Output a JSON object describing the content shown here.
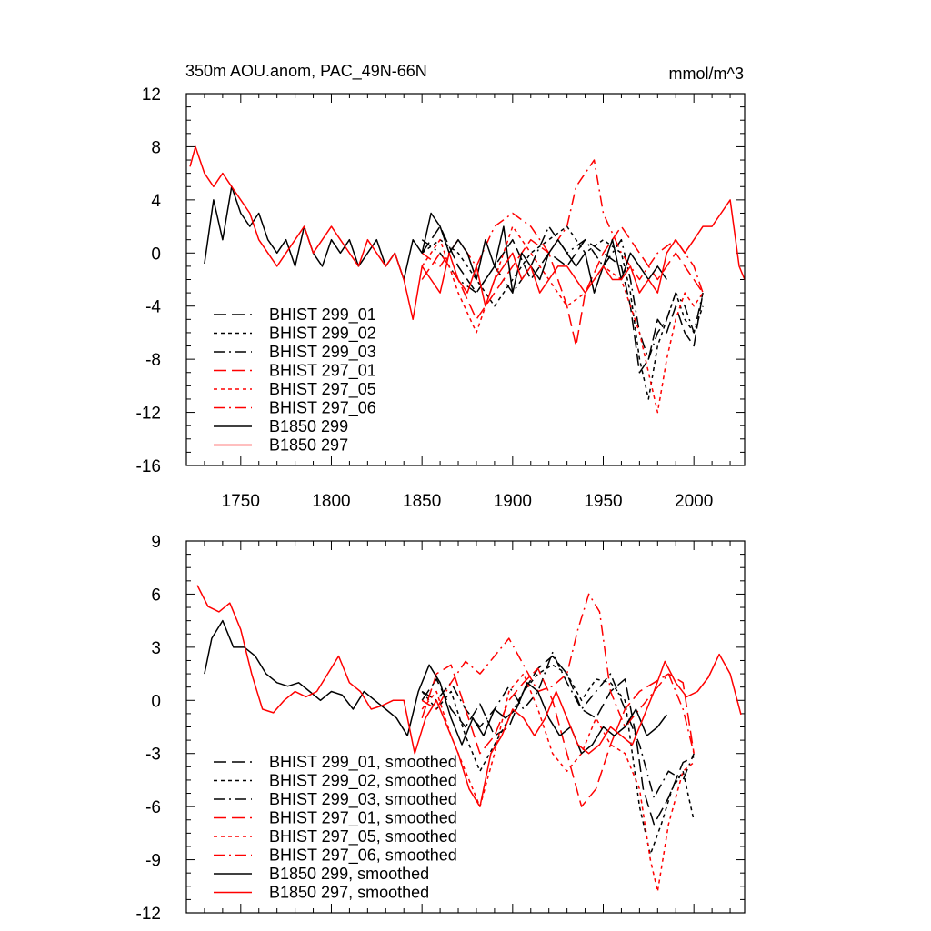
{
  "chart_data": [
    {
      "type": "line",
      "title": "350m AOU.anom, PAC_49N-66N",
      "units": "mmol/m^3",
      "xlim": [
        1720,
        2028
      ],
      "ylim": [
        -16,
        12
      ],
      "yticks": [
        12,
        8,
        4,
        0,
        -4,
        -8,
        -12,
        -16
      ],
      "xticks": [
        1750,
        1800,
        1850,
        1900,
        1950,
        2000
      ],
      "legend": "bottom-left",
      "series": [
        {
          "name": "BHIST 299_01",
          "color": "#000000",
          "dash": "long-dash",
          "x": [
            1850,
            1860,
            1870,
            1880,
            1890,
            1900,
            1910,
            1920,
            1930,
            1940,
            1950,
            1960,
            1965,
            1970,
            1975,
            1980,
            1985,
            1990,
            1995,
            2000,
            2005
          ],
          "y": [
            0,
            2,
            -1,
            -3,
            -1,
            1,
            -2,
            0,
            -1,
            1,
            0,
            -1,
            -4,
            -9,
            -8,
            -5,
            -6,
            -4,
            -6,
            -7,
            -3
          ]
        },
        {
          "name": "BHIST 299_02",
          "color": "#000000",
          "dash": "short-dash",
          "x": [
            1850,
            1860,
            1870,
            1880,
            1890,
            1900,
            1910,
            1920,
            1930,
            1940,
            1950,
            1960,
            1965,
            1970,
            1975,
            1980,
            1985,
            1990,
            1995,
            2000,
            2005
          ],
          "y": [
            0,
            1,
            0,
            -2,
            -4,
            -2,
            0,
            1,
            2,
            0,
            1,
            0,
            -3,
            -8,
            -11,
            -7,
            -5,
            -3,
            -5,
            -6,
            -4
          ]
        },
        {
          "name": "BHIST 299_03",
          "color": "#000000",
          "dash": "dash-dot",
          "x": [
            1850,
            1860,
            1870,
            1880,
            1890,
            1900,
            1910,
            1920,
            1930,
            1940,
            1950,
            1960,
            1965,
            1970,
            1975,
            1980,
            1985,
            1990,
            1995,
            2000,
            2005
          ],
          "y": [
            1,
            0,
            -2,
            -3,
            -1,
            -3,
            -1,
            2,
            0,
            1,
            -1,
            1,
            -2,
            -6,
            -8,
            -6,
            -5,
            -3,
            -4,
            -6,
            -3
          ]
        },
        {
          "name": "BHIST 297_01",
          "color": "#ff0000",
          "dash": "long-dash",
          "x": [
            1850,
            1860,
            1870,
            1880,
            1890,
            1900,
            1910,
            1920,
            1930,
            1935,
            1940,
            1950,
            1960,
            1970,
            1980,
            1990,
            2000,
            2005
          ],
          "y": [
            -2,
            0,
            -2,
            -5,
            -3,
            -1,
            1,
            0,
            -4,
            -7,
            -3,
            0,
            2,
            0,
            -2,
            0,
            -2,
            -3
          ]
        },
        {
          "name": "BHIST 297_05",
          "color": "#ff0000",
          "dash": "short-dash",
          "x": [
            1850,
            1860,
            1870,
            1880,
            1890,
            1900,
            1910,
            1920,
            1930,
            1940,
            1950,
            1960,
            1965,
            1970,
            1975,
            1980,
            1985,
            1990,
            1995,
            2000,
            2005
          ],
          "y": [
            -1,
            1,
            -3,
            -6,
            -2,
            2,
            0,
            -2,
            -4,
            -3,
            -1,
            -2,
            -4,
            -6,
            -9,
            -12,
            -8,
            -5,
            -3,
            -4,
            -3
          ]
        },
        {
          "name": "BHIST 297_06",
          "color": "#ff0000",
          "dash": "dash-dot",
          "x": [
            1850,
            1860,
            1870,
            1880,
            1890,
            1900,
            1910,
            1920,
            1930,
            1935,
            1940,
            1945,
            1950,
            1960,
            1970,
            1980,
            1990,
            2000,
            2005
          ],
          "y": [
            0,
            -1,
            1,
            -1,
            2,
            3,
            2,
            0,
            2,
            5,
            6,
            7,
            3,
            0,
            -2,
            0,
            1,
            -1,
            -3
          ]
        },
        {
          "name": "B1850 299",
          "color": "#000000",
          "dash": "solid",
          "x": [
            1730,
            1735,
            1740,
            1745,
            1750,
            1755,
            1760,
            1765,
            1770,
            1775,
            1780,
            1785,
            1790,
            1795,
            1800,
            1805,
            1810,
            1815,
            1820,
            1825,
            1830,
            1835,
            1840,
            1845,
            1850,
            1855,
            1860,
            1865,
            1870,
            1875,
            1880,
            1885,
            1890,
            1895,
            1900,
            1905,
            1910,
            1915,
            1920,
            1925,
            1930,
            1935,
            1940,
            1945,
            1950,
            1955,
            1960,
            1965,
            1970,
            1975,
            1980,
            1985
          ],
          "y": [
            -0.8,
            4,
            1,
            5,
            3,
            2,
            3,
            1,
            0,
            1,
            -1,
            2,
            0,
            -1,
            1,
            0,
            1,
            -1,
            0,
            1,
            -1,
            0,
            -2,
            1,
            0,
            3,
            2,
            0,
            1,
            0,
            -2,
            1,
            -1,
            2,
            -3,
            0,
            -1,
            -2,
            0,
            1,
            0,
            -1,
            0,
            -3,
            -1,
            1,
            -2,
            0,
            -1,
            -2,
            -1,
            -2
          ]
        },
        {
          "name": "B1850 297",
          "color": "#ff0000",
          "dash": "solid",
          "x": [
            1722,
            1725,
            1730,
            1735,
            1740,
            1745,
            1750,
            1755,
            1760,
            1765,
            1770,
            1775,
            1780,
            1785,
            1790,
            1795,
            1800,
            1805,
            1810,
            1815,
            1820,
            1825,
            1830,
            1835,
            1840,
            1845,
            1850,
            1855,
            1860,
            1865,
            1870,
            1875,
            1880,
            1885,
            1890,
            1895,
            1900,
            1905,
            1910,
            1915,
            1920,
            1925,
            1930,
            1935,
            1940,
            1945,
            1950,
            1955,
            1960,
            1965,
            1970,
            1975,
            1980,
            1985,
            1990,
            1995,
            2000,
            2005,
            2010,
            2015,
            2020,
            2025,
            2028
          ],
          "y": [
            6.5,
            8,
            6,
            5,
            6,
            5,
            4,
            3,
            1,
            0,
            -1,
            0,
            1,
            2,
            0,
            1,
            2,
            1,
            0,
            -1,
            1,
            0,
            -1,
            0,
            -2,
            -5,
            -1,
            -2,
            -3,
            0,
            -2,
            -3,
            -1,
            -4,
            -2,
            -1,
            0,
            -2,
            -1,
            -3,
            -2,
            -1,
            -1,
            -2,
            -3,
            -2,
            -1,
            -2,
            -2,
            -1,
            -3,
            -2,
            -3,
            0,
            1,
            0,
            1,
            2,
            2,
            3,
            4,
            -1,
            -2
          ]
        }
      ]
    },
    {
      "type": "line",
      "title": "",
      "xlim": [
        1720,
        2028
      ],
      "ylim": [
        -12,
        9
      ],
      "yticks": [
        9,
        6,
        3,
        0,
        -3,
        -6,
        -9,
        -12
      ],
      "legend": "bottom-left",
      "series": [
        {
          "name": "BHIST 299_01, smoothed",
          "color": "#000000",
          "dash": "long-dash",
          "x": [
            1850,
            1858,
            1866,
            1874,
            1882,
            1890,
            1898,
            1906,
            1914,
            1922,
            1930,
            1938,
            1946,
            1954,
            1962,
            1968,
            1972,
            1978,
            1986,
            1994,
            2000
          ],
          "y": [
            0,
            1.2,
            -0.5,
            -1.5,
            -0.2,
            -2,
            -1.5,
            0.5,
            1.8,
            2.5,
            1.5,
            -0.5,
            -1,
            0.5,
            1.2,
            -2,
            -5,
            -7,
            -5.5,
            -3.5,
            -3.2
          ]
        },
        {
          "name": "BHIST 299_02, smoothed",
          "color": "#000000",
          "dash": "short-dash",
          "x": [
            1850,
            1858,
            1866,
            1874,
            1882,
            1890,
            1898,
            1906,
            1914,
            1922,
            1930,
            1938,
            1946,
            1954,
            1962,
            1966,
            1970,
            1976,
            1982,
            1988,
            1994,
            2000
          ],
          "y": [
            0.5,
            -0.5,
            0.5,
            -2,
            -4,
            -2.5,
            -1,
            0.5,
            1.5,
            2,
            1.5,
            0,
            1.2,
            1,
            0,
            -3,
            -6,
            -8.7,
            -7,
            -5,
            -4,
            -6.8
          ]
        },
        {
          "name": "BHIST 299_03, smoothed",
          "color": "#000000",
          "dash": "dash-dot",
          "x": [
            1850,
            1858,
            1866,
            1874,
            1882,
            1890,
            1898,
            1906,
            1914,
            1922,
            1930,
            1938,
            1946,
            1954,
            1962,
            1970,
            1978,
            1986,
            1994,
            2000
          ],
          "y": [
            0.5,
            0,
            1,
            -0.5,
            -1.5,
            -0.5,
            0.8,
            -0.5,
            0.5,
            2.7,
            1,
            -0.5,
            0.5,
            1.5,
            -0.5,
            -2.5,
            -5.5,
            -4,
            -4.5,
            -3
          ]
        },
        {
          "name": "BHIST 297_01, smoothed",
          "color": "#ff0000",
          "dash": "long-dash",
          "x": [
            1850,
            1858,
            1866,
            1874,
            1882,
            1890,
            1898,
            1906,
            1914,
            1922,
            1930,
            1938,
            1946,
            1954,
            1962,
            1970,
            1978,
            1986,
            1994,
            2000
          ],
          "y": [
            -1,
            1.5,
            2,
            -0.5,
            -3,
            -2,
            0,
            1,
            1.8,
            0,
            -3,
            -6,
            -5,
            -2.5,
            -0.5,
            0.5,
            1,
            1.5,
            1,
            -3
          ]
        },
        {
          "name": "BHIST 297_05, smoothed",
          "color": "#ff0000",
          "dash": "short-dash",
          "x": [
            1850,
            1858,
            1866,
            1874,
            1882,
            1890,
            1898,
            1906,
            1914,
            1922,
            1930,
            1938,
            1946,
            1954,
            1962,
            1970,
            1976,
            1980,
            1986,
            1994,
            2000
          ],
          "y": [
            -0.5,
            0.5,
            -2,
            -4,
            -6,
            -3,
            0.5,
            1.5,
            -0.5,
            -3,
            -4,
            -3,
            -1,
            -2.5,
            -3,
            -5,
            -9,
            -10.8,
            -7,
            -4,
            -3.5
          ]
        },
        {
          "name": "BHIST 297_06, smoothed",
          "color": "#ff0000",
          "dash": "dash-dot",
          "x": [
            1850,
            1858,
            1866,
            1874,
            1882,
            1890,
            1898,
            1906,
            1914,
            1922,
            1930,
            1936,
            1942,
            1948,
            1954,
            1962,
            1970,
            1978,
            1986,
            1994,
            2000
          ],
          "y": [
            0,
            -0.5,
            1,
            2.2,
            1.5,
            2.5,
            3.5,
            2,
            0.5,
            0.8,
            1.5,
            4,
            6,
            5,
            0.5,
            -1.5,
            -0.5,
            0.5,
            1.5,
            -0.5,
            -3
          ]
        },
        {
          "name": "B1850 299, smoothed",
          "color": "#000000",
          "dash": "solid",
          "x": [
            1730,
            1734,
            1740,
            1746,
            1752,
            1758,
            1764,
            1770,
            1776,
            1782,
            1788,
            1794,
            1800,
            1806,
            1812,
            1818,
            1824,
            1830,
            1836,
            1842,
            1848,
            1854,
            1860,
            1866,
            1872,
            1878,
            1884,
            1890,
            1896,
            1902,
            1908,
            1914,
            1920,
            1926,
            1932,
            1938,
            1944,
            1950,
            1956,
            1962,
            1968,
            1974,
            1980,
            1985
          ],
          "y": [
            1.5,
            3.5,
            4.5,
            3,
            3,
            2.5,
            1.5,
            1,
            0.8,
            1,
            0.5,
            0,
            0.5,
            0.3,
            -0.5,
            0.5,
            0,
            -0.5,
            -1,
            -2,
            0.5,
            2,
            1,
            -1,
            -2.5,
            -1,
            -2,
            -0.5,
            -1,
            -0.5,
            1,
            0.5,
            -1,
            -2,
            -1.5,
            -3,
            -2.5,
            -1.5,
            -2,
            -1.5,
            -0.5,
            -2,
            -1.5,
            -0.8
          ]
        },
        {
          "name": "B1850 297, smoothed",
          "color": "#ff0000",
          "dash": "solid",
          "x": [
            1726,
            1732,
            1738,
            1744,
            1750,
            1756,
            1762,
            1768,
            1774,
            1780,
            1786,
            1792,
            1798,
            1804,
            1810,
            1816,
            1822,
            1828,
            1834,
            1840,
            1846,
            1852,
            1858,
            1864,
            1870,
            1876,
            1882,
            1888,
            1894,
            1900,
            1906,
            1912,
            1918,
            1924,
            1930,
            1936,
            1942,
            1948,
            1954,
            1960,
            1966,
            1972,
            1978,
            1984,
            1990,
            1996,
            2002,
            2008,
            2014,
            2020,
            2026
          ],
          "y": [
            6.5,
            5.3,
            5,
            5.5,
            4,
            1.5,
            -0.5,
            -0.7,
            0,
            0.5,
            0.2,
            0.5,
            1.5,
            2.5,
            1,
            0.5,
            -0.5,
            -0.3,
            0,
            0,
            -3,
            -1,
            0,
            -1.5,
            -3,
            -5,
            -6,
            -3,
            -2,
            -0.5,
            -1,
            -2,
            -1,
            0.5,
            -1,
            -2.5,
            -3,
            -2.5,
            -1.5,
            -2,
            -2.5,
            -1,
            0.5,
            2.2,
            1,
            0.2,
            0.5,
            1.3,
            2.6,
            1.5,
            -0.8
          ]
        }
      ]
    }
  ]
}
